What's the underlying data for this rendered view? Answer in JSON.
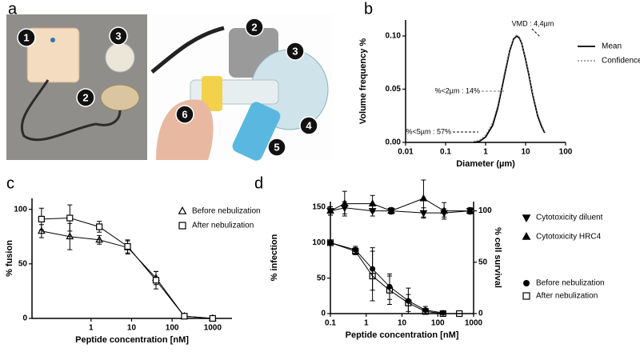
{
  "panel_labels": [
    "a",
    "b",
    "c",
    "d"
  ],
  "photo_labels": [
    "1",
    "3",
    "2",
    "2",
    "3",
    "6",
    "4",
    "5"
  ],
  "chart_data": [
    {
      "type": "line",
      "xlabel": "Diameter (µm)",
      "ylabel": "Volume frequency %",
      "xscale": "log",
      "xlim": [
        0.01,
        100
      ],
      "xticks": [
        0.01,
        0.1,
        1,
        10,
        100
      ],
      "ylim": [
        0,
        0.115
      ],
      "yticks": [
        {
          "value": 0,
          "label": "0.00"
        },
        {
          "value": 0.05,
          "label": "0.05"
        },
        {
          "value": 0.1,
          "label": "0.10"
        }
      ],
      "x": [
        0.5,
        0.7,
        1,
        1.5,
        2,
        3,
        4,
        5,
        6,
        7,
        8,
        10,
        12,
        15,
        20,
        25,
        30
      ],
      "series": [
        {
          "name": "Mean",
          "color": "#000000",
          "dash": "solid",
          "values": [
            0.0,
            0.001,
            0.005,
            0.016,
            0.032,
            0.064,
            0.086,
            0.097,
            0.1,
            0.098,
            0.093,
            0.078,
            0.064,
            0.045,
            0.025,
            0.015,
            0.009
          ]
        },
        {
          "name": "Confidence",
          "color": "#999999",
          "dash": "dotted",
          "values": [
            0.001,
            0.002,
            0.007,
            0.019,
            0.035,
            0.067,
            0.088,
            0.098,
            0.101,
            0.099,
            0.094,
            0.08,
            0.066,
            0.047,
            0.027,
            0.017,
            0.01
          ]
        }
      ],
      "annotations": [
        "VMD : 4,4µm",
        "%<2µm : 14%",
        "%<5µm : 57%"
      ],
      "legend": "right"
    },
    {
      "type": "scatter",
      "xlabel": "Peptide concentration [nM]",
      "ylabel": "% fusion",
      "xscale": "log",
      "xlim": [
        0.035,
        3000
      ],
      "xticks": [
        1,
        10,
        100,
        1000
      ],
      "ylim": [
        0,
        110
      ],
      "yticks": [
        0,
        50,
        100
      ],
      "series": [
        {
          "name": "Before nebulization",
          "color": "#000000",
          "marker": "triangle-up",
          "x": [
            0.06,
            0.3,
            1.6,
            8,
            40,
            200,
            1000
          ],
          "values": [
            80,
            75,
            72,
            65,
            37,
            2,
            0
          ],
          "errors": [
            6,
            12,
            4,
            6,
            6,
            2,
            1
          ]
        },
        {
          "name": "After nebulization",
          "color": "#000000",
          "marker": "square",
          "x": [
            0.06,
            0.3,
            1.6,
            8,
            40,
            200,
            1000
          ],
          "values": [
            91,
            92,
            84,
            66,
            35,
            2,
            0
          ],
          "errors": [
            10,
            12,
            5,
            6,
            8,
            2,
            1
          ]
        }
      ],
      "legend": "upper right"
    },
    {
      "type": "scatter",
      "xlabel": "Peptide concentration [nM]",
      "ylabel": "% infection",
      "y2label": "% cell survival",
      "xscale": "log",
      "xlim": [
        0.1,
        1000
      ],
      "xticks": [
        0.1,
        1,
        10,
        100,
        1000
      ],
      "ylim": [
        0,
        158
      ],
      "yticks": [
        0,
        50,
        100,
        150
      ],
      "y2lim": [
        0,
        109
      ],
      "y2ticks": [
        0,
        50,
        100
      ],
      "series": [
        {
          "name": "Cytotoxicity diluent",
          "color": "#000000",
          "marker": "triangle-down",
          "axis": "y2",
          "x": [
            0.1,
            0.25,
            1.5,
            5,
            40,
            150,
            800
          ],
          "values": [
            100,
            103,
            100,
            100,
            98,
            98,
            100
          ],
          "errors": [
            4,
            6,
            5,
            3,
            5,
            4,
            3
          ]
        },
        {
          "name": "Cytotoxicity HRC4",
          "color": "#000000",
          "marker": "triangle-up",
          "axis": "y2",
          "x": [
            0.1,
            0.25,
            1.5,
            5,
            40,
            150,
            800
          ],
          "values": [
            100,
            107,
            107,
            100,
            112,
            100,
            100
          ],
          "errors": [
            4,
            12,
            8,
            3,
            18,
            8,
            3
          ]
        },
        {
          "name": "Before nebulization",
          "color": "#000000",
          "marker": "circle",
          "x": [
            0.1,
            0.5,
            1.5,
            4.5,
            15,
            45,
            140
          ],
          "values": [
            100,
            90,
            63,
            38,
            18,
            5,
            1
          ],
          "errors": [
            2,
            5,
            30,
            18,
            18,
            5,
            1
          ]
        },
        {
          "name": "After nebulization",
          "color": "#000000",
          "marker": "square",
          "x": [
            0.1,
            0.5,
            1.5,
            4.5,
            15,
            45,
            140,
            400
          ],
          "values": [
            100,
            88,
            53,
            33,
            15,
            3,
            0,
            0
          ],
          "errors": [
            2,
            5,
            35,
            20,
            12,
            4,
            1,
            0
          ]
        }
      ],
      "legend": "right"
    }
  ]
}
